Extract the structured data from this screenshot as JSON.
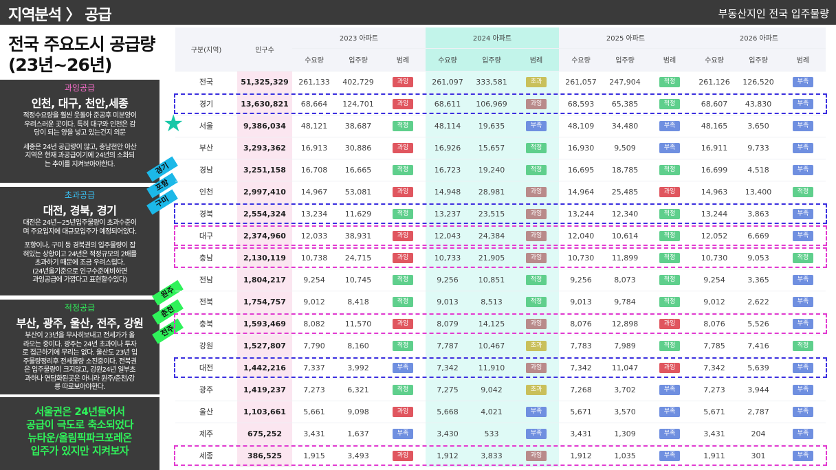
{
  "header": {
    "title": "지역분석 〉 공급",
    "right": "부동산지인 전국 입주물량"
  },
  "left": {
    "title_line1": "전국 주요도시 공급량",
    "title_line2": "(23년~26년)",
    "panels": [
      {
        "kind": "과잉공급",
        "kind_color": "#ff6fd0",
        "cities": "인천, 대구, 천안,세종",
        "body": [
          "적정수요량을 훨씬 웃돌아 준공후 미분양이",
          "우려스러운 곳이다. 특히 대구와 인천은 감",
          "당이 되는 양을 넣고 있는건지 의문",
          "",
          "세종은 24년 공급량이 많고, 충남천안 아산",
          "지역은 현재 과공급이기에 24년의 소화되",
          "는 추이를 지켜보아야한다."
        ]
      },
      {
        "kind": "초과공급",
        "kind_color": "#39c9ff",
        "cities": "대전, 경북, 경기",
        "body": [
          "대전은 24년~25년입주물량이 초과수준이",
          "며 주요입지에 대규모입주가 예정되어있다.",
          "",
          "포항이나, 구미 등 경북권의 입주물량이 잡",
          "혀있는 상황이고 24년은 적정규모의 2배를",
          "초과하기 때문에 조금 우려스럽다.",
          "(24년올기준으로 인구수준에비하면",
          "과잉공급에 가깝다고 표현할수있다)"
        ]
      },
      {
        "kind": "적정공급",
        "kind_color": "#2ff25a",
        "cities": "부산, 광주, 울산, 전주, 강원",
        "body": [
          "부산이 23년을 무사히보내고 전세가가 올",
          "라오는 중이다. 광주는 24년 초과이나 투자",
          "로 접근하기에 무리는 없다. 울산도 23년 입",
          "주물량정리후 전세물량 소진중이다. 전북권",
          "은 입주물량이 크지않고, 강원24년 일부초",
          "과하나 연담화된곳은 아니라 원주/춘천/강",
          "릉 따로보아야한다."
        ]
      }
    ],
    "bottom": [
      "서울권은 24년들어서",
      "공급이 극도로 축소되었다",
      "뉴타운/올림픽파크포레온",
      "입주가 있지만 지켜보자"
    ],
    "tags": [
      {
        "text": "경기",
        "color": "#1cb8e8"
      },
      {
        "text": "포항",
        "color": "#1cb8e8"
      },
      {
        "text": "구미",
        "color": "#1cb8e8"
      },
      {
        "text": "원주",
        "color": "#2ff25a"
      },
      {
        "text": "춘천",
        "color": "#2ff25a"
      },
      {
        "text": "전주",
        "color": "#2ff25a"
      }
    ]
  },
  "table": {
    "col_region": "구분(지역)",
    "col_pop": "인구수",
    "years": [
      "2023 아파트",
      "2024 아파트",
      "2025 아파트",
      "2026 아파트"
    ],
    "sub": [
      "수요량",
      "입주량",
      "범례"
    ],
    "badge_colors": {
      "과잉": "#e0565f",
      "초과": "#c9c05a",
      "적정": "#5fcf8c",
      "부족": "#6f8fe0",
      "과잉2024": "#b98a8a"
    },
    "rows": [
      {
        "region": "전국",
        "pop": "51,325,329",
        "y": [
          [
            "261,133",
            "402,729",
            "과잉"
          ],
          [
            "261,097",
            "333,581",
            "초과"
          ],
          [
            "261,057",
            "247,904",
            "적정"
          ],
          [
            "261,126",
            "126,520",
            "부족"
          ]
        ]
      },
      {
        "region": "경기",
        "pop": "13,630,821",
        "y": [
          [
            "68,664",
            "124,701",
            "과잉"
          ],
          [
            "68,611",
            "106,969",
            "과잉"
          ],
          [
            "68,593",
            "65,385",
            "적정"
          ],
          [
            "68,607",
            "43,830",
            "부족"
          ]
        ]
      },
      {
        "region": "서울",
        "pop": "9,386,034",
        "y": [
          [
            "48,121",
            "38,687",
            "적정"
          ],
          [
            "48,114",
            "19,635",
            "부족"
          ],
          [
            "48,109",
            "34,480",
            "부족"
          ],
          [
            "48,165",
            "3,650",
            "부족"
          ]
        ]
      },
      {
        "region": "부산",
        "pop": "3,293,362",
        "y": [
          [
            "16,913",
            "30,886",
            "과잉"
          ],
          [
            "16,926",
            "15,657",
            "적정"
          ],
          [
            "16,930",
            "9,509",
            "부족"
          ],
          [
            "16,911",
            "9,733",
            "부족"
          ]
        ]
      },
      {
        "region": "경남",
        "pop": "3,251,158",
        "y": [
          [
            "16,708",
            "16,665",
            "적정"
          ],
          [
            "16,723",
            "19,240",
            "적정"
          ],
          [
            "16,695",
            "18,785",
            "적정"
          ],
          [
            "16,699",
            "4,518",
            "부족"
          ]
        ]
      },
      {
        "region": "인천",
        "pop": "2,997,410",
        "y": [
          [
            "14,967",
            "53,081",
            "과잉"
          ],
          [
            "14,948",
            "28,981",
            "과잉"
          ],
          [
            "14,964",
            "25,485",
            "과잉"
          ],
          [
            "14,963",
            "13,400",
            "적정"
          ]
        ]
      },
      {
        "region": "경북",
        "pop": "2,554,324",
        "y": [
          [
            "13,234",
            "11,629",
            "적정"
          ],
          [
            "13,237",
            "23,515",
            "과잉"
          ],
          [
            "13,244",
            "12,340",
            "적정"
          ],
          [
            "13,244",
            "3,863",
            "부족"
          ]
        ]
      },
      {
        "region": "대구",
        "pop": "2,374,960",
        "y": [
          [
            "12,033",
            "38,931",
            "과잉"
          ],
          [
            "12,043",
            "24,384",
            "과잉"
          ],
          [
            "12,040",
            "10,614",
            "적정"
          ],
          [
            "12,052",
            "6,669",
            "부족"
          ]
        ]
      },
      {
        "region": "충남",
        "pop": "2,130,119",
        "y": [
          [
            "10,738",
            "24,715",
            "과잉"
          ],
          [
            "10,733",
            "21,905",
            "과잉"
          ],
          [
            "10,730",
            "11,899",
            "적정"
          ],
          [
            "10,730",
            "9,053",
            "적정"
          ]
        ]
      },
      {
        "region": "전남",
        "pop": "1,804,217",
        "y": [
          [
            "9,254",
            "10,745",
            "적정"
          ],
          [
            "9,256",
            "10,851",
            "적정"
          ],
          [
            "9,256",
            "8,073",
            "적정"
          ],
          [
            "9,254",
            "3,365",
            "부족"
          ]
        ]
      },
      {
        "region": "전북",
        "pop": "1,754,757",
        "y": [
          [
            "9,012",
            "8,418",
            "적정"
          ],
          [
            "9,013",
            "8,513",
            "적정"
          ],
          [
            "9,013",
            "9,784",
            "적정"
          ],
          [
            "9,012",
            "2,622",
            "부족"
          ]
        ]
      },
      {
        "region": "충북",
        "pop": "1,593,469",
        "y": [
          [
            "8,082",
            "11,570",
            "과잉"
          ],
          [
            "8,079",
            "14,125",
            "과잉"
          ],
          [
            "8,076",
            "12,898",
            "과잉"
          ],
          [
            "8,076",
            "5,526",
            "부족"
          ]
        ]
      },
      {
        "region": "강원",
        "pop": "1,527,807",
        "y": [
          [
            "7,790",
            "8,160",
            "적정"
          ],
          [
            "7,787",
            "10,467",
            "초과"
          ],
          [
            "7,783",
            "7,989",
            "적정"
          ],
          [
            "7,785",
            "7,416",
            "적정"
          ]
        ]
      },
      {
        "region": "대전",
        "pop": "1,442,216",
        "y": [
          [
            "7,337",
            "3,992",
            "부족"
          ],
          [
            "7,342",
            "11,910",
            "과잉"
          ],
          [
            "7,342",
            "11,047",
            "과잉"
          ],
          [
            "7,342",
            "5,639",
            "부족"
          ]
        ]
      },
      {
        "region": "광주",
        "pop": "1,419,237",
        "y": [
          [
            "7,273",
            "6,321",
            "적정"
          ],
          [
            "7,275",
            "9,042",
            "초과"
          ],
          [
            "7,268",
            "3,702",
            "부족"
          ],
          [
            "7,273",
            "3,944",
            "부족"
          ]
        ]
      },
      {
        "region": "울산",
        "pop": "1,103,661",
        "y": [
          [
            "5,661",
            "9,098",
            "과잉"
          ],
          [
            "5,668",
            "4,021",
            "부족"
          ],
          [
            "5,671",
            "3,570",
            "부족"
          ],
          [
            "5,671",
            "2,787",
            "부족"
          ]
        ]
      },
      {
        "region": "제주",
        "pop": "675,252",
        "y": [
          [
            "3,431",
            "1,637",
            "부족"
          ],
          [
            "3,430",
            "533",
            "부족"
          ],
          [
            "3,431",
            "1,309",
            "부족"
          ],
          [
            "3,431",
            "204",
            "부족"
          ]
        ]
      },
      {
        "region": "세종",
        "pop": "386,525",
        "y": [
          [
            "1,915",
            "3,493",
            "과잉"
          ],
          [
            "1,912",
            "3,833",
            "과잉"
          ],
          [
            "1,912",
            "1,035",
            "부족"
          ],
          [
            "1,911",
            "301",
            "부족"
          ]
        ]
      }
    ],
    "highlights": [
      {
        "row": 1,
        "color": "#3b2fe0"
      },
      {
        "row": 6,
        "color": "#3b2fe0"
      },
      {
        "row": 7,
        "color": "#e23ad0"
      },
      {
        "row": 8,
        "color": "#e23ad0"
      },
      {
        "row": 11,
        "color": "#e23ad0"
      },
      {
        "row": 13,
        "color": "#3b2fe0"
      },
      {
        "row": 17,
        "color": "#e23ad0"
      }
    ]
  }
}
